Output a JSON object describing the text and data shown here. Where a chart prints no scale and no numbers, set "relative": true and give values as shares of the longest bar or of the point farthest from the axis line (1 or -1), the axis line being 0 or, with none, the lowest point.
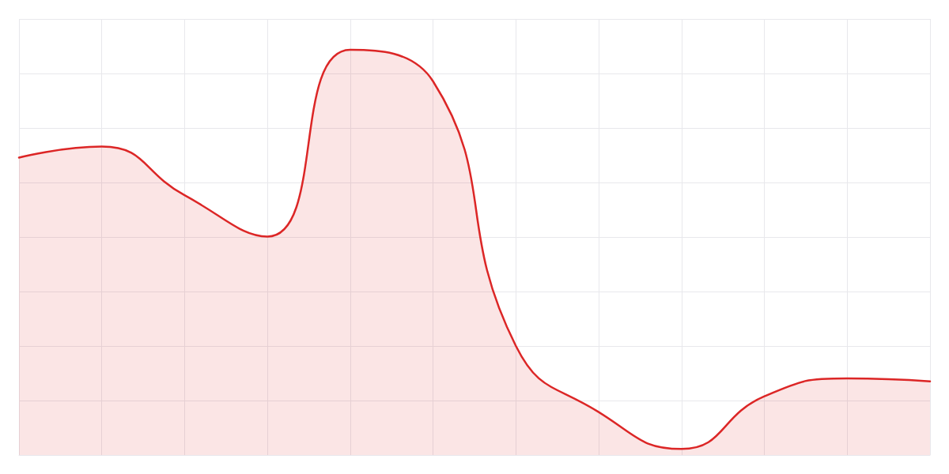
{
  "chart_data": {
    "type": "area",
    "relative": true,
    "grid": true,
    "marker": "none",
    "color": "#dc2626",
    "categories": [
      null,
      null,
      null,
      null,
      null,
      null,
      null,
      null,
      null,
      null,
      null,
      null
    ],
    "values": [
      0.734,
      0.761,
      0.641,
      0.539,
      1,
      0.922,
      0.269,
      0.106,
      0.015,
      0.145,
      0.189,
      0.182
    ]
  }
}
